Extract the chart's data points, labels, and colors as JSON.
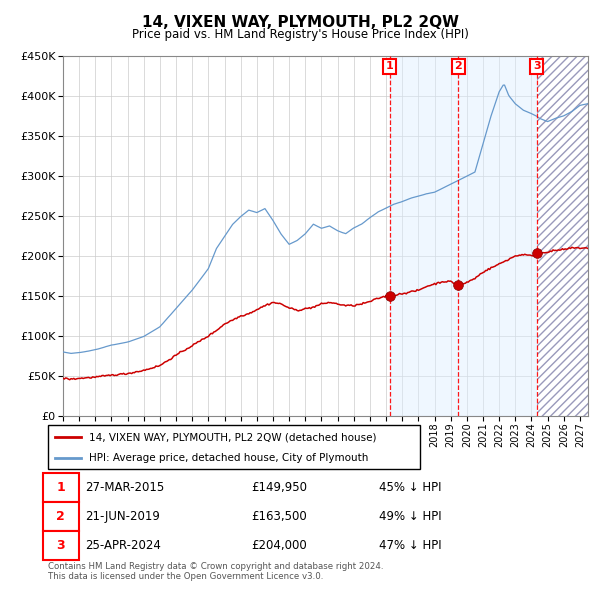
{
  "title": "14, VIXEN WAY, PLYMOUTH, PL2 2QW",
  "subtitle": "Price paid vs. HM Land Registry's House Price Index (HPI)",
  "legend_label_red": "14, VIXEN WAY, PLYMOUTH, PL2 2QW (detached house)",
  "legend_label_blue": "HPI: Average price, detached house, City of Plymouth",
  "transactions": [
    {
      "num": 1,
      "date": "27-MAR-2015",
      "price": 149950,
      "pct": "45%",
      "year": 2015.23
    },
    {
      "num": 2,
      "date": "21-JUN-2019",
      "price": 163500,
      "pct": "49%",
      "year": 2019.47
    },
    {
      "num": 3,
      "date": "25-APR-2024",
      "price": 204000,
      "pct": "47%",
      "year": 2024.32
    }
  ],
  "footnote": "Contains HM Land Registry data © Crown copyright and database right 2024.\nThis data is licensed under the Open Government Licence v3.0.",
  "ylim": [
    0,
    450000
  ],
  "xlim_start": 1995.0,
  "xlim_end": 2027.5,
  "hpi_color": "#6699cc",
  "price_color": "#cc0000",
  "bg_color": "#ffffff",
  "grid_color": "#cccccc",
  "transaction_bg_color": "#ddeeff",
  "future_start": 2024.32
}
